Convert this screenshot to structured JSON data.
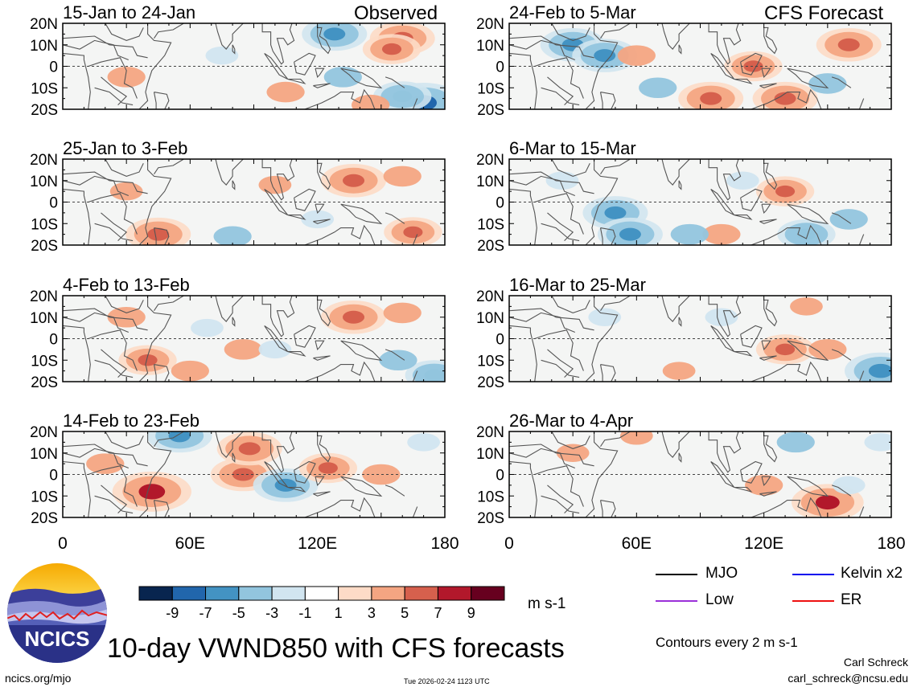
{
  "figure": {
    "title": "10-day VWND850 with CFS forecasts",
    "units": "m s-1",
    "contour_note": "Contours every 2 m s-1",
    "author": "Carl Schreck",
    "email": "carl_schreck@ncsu.edu",
    "website": "ncics.org/mjo",
    "timestamp": "Tue 2026-02-24 1123 UTC",
    "logo_text": "NCICS"
  },
  "columns": {
    "left_label": "Observed",
    "right_label": "CFS Forecast"
  },
  "legend": {
    "items": [
      {
        "label": "MJO",
        "color": "#000000"
      },
      {
        "label": "Kelvin x2",
        "color": "#0000ee"
      },
      {
        "label": "Low",
        "color": "#9b30d9"
      },
      {
        "label": "ER",
        "color": "#ee1111"
      }
    ]
  },
  "colorbar": {
    "colors": [
      "#08254f",
      "#2166ac",
      "#4393c3",
      "#92c5de",
      "#d1e5f0",
      "#ffffff",
      "#fddbc7",
      "#f4a582",
      "#d6604d",
      "#b2182b",
      "#67001f"
    ],
    "ticks": [
      "-9",
      "-7",
      "-5",
      "-3",
      "-1",
      "1",
      "3",
      "5",
      "7",
      "9"
    ]
  },
  "chart_data": {
    "type": "heatmap",
    "variable": "VWND850 (10-day mean meridional wind at 850 hPa)",
    "x_range": [
      0,
      180
    ],
    "y_range": [
      -20,
      20
    ],
    "x_ticks": [
      "0",
      "60E",
      "120E",
      "180"
    ],
    "y_ticks": [
      "20N",
      "10N",
      "0",
      "10S",
      "20S"
    ],
    "panels": [
      {
        "label": "15-Jan to 24-Jan",
        "column": "left",
        "blobs": [
          {
            "lon": 160,
            "lat": 13,
            "value": 5
          },
          {
            "lon": 155,
            "lat": 8,
            "value": 4
          },
          {
            "lon": 170,
            "lat": -17,
            "value": -7
          },
          {
            "lon": 160,
            "lat": -14,
            "value": -4
          },
          {
            "lon": 128,
            "lat": 15,
            "value": -5
          },
          {
            "lon": 132,
            "lat": -5,
            "value": -3
          },
          {
            "lon": 30,
            "lat": -5,
            "value": 3
          },
          {
            "lon": 75,
            "lat": 5,
            "value": -2
          },
          {
            "lon": 105,
            "lat": -12,
            "value": 3
          },
          {
            "lon": 145,
            "lat": -18,
            "value": 3
          }
        ]
      },
      {
        "label": "25-Jan to 3-Feb",
        "column": "left",
        "blobs": [
          {
            "lon": 137,
            "lat": 10,
            "value": 5
          },
          {
            "lon": 160,
            "lat": 12,
            "value": 3
          },
          {
            "lon": 45,
            "lat": -15,
            "value": 5
          },
          {
            "lon": 165,
            "lat": -14,
            "value": 4
          },
          {
            "lon": 80,
            "lat": -16,
            "value": -3
          },
          {
            "lon": 120,
            "lat": -8,
            "value": -2
          },
          {
            "lon": 100,
            "lat": 8,
            "value": 2
          },
          {
            "lon": 30,
            "lat": 5,
            "value": 2
          }
        ]
      },
      {
        "label": "4-Feb to 13-Feb",
        "column": "left",
        "blobs": [
          {
            "lon": 137,
            "lat": 10,
            "value": 5
          },
          {
            "lon": 160,
            "lat": 12,
            "value": 3
          },
          {
            "lon": 40,
            "lat": -10,
            "value": 4
          },
          {
            "lon": 85,
            "lat": -5,
            "value": 3
          },
          {
            "lon": 100,
            "lat": -5,
            "value": -2
          },
          {
            "lon": 60,
            "lat": -15,
            "value": 3
          },
          {
            "lon": 30,
            "lat": 10,
            "value": 3
          },
          {
            "lon": 175,
            "lat": -17,
            "value": -4
          },
          {
            "lon": 68,
            "lat": 5,
            "value": -2
          },
          {
            "lon": 158,
            "lat": -10,
            "value": -3
          }
        ]
      },
      {
        "label": "14-Feb to 23-Feb",
        "column": "left",
        "blobs": [
          {
            "lon": 42,
            "lat": -8,
            "value": 7
          },
          {
            "lon": 85,
            "lat": 0,
            "value": 5
          },
          {
            "lon": 88,
            "lat": 12,
            "value": 5
          },
          {
            "lon": 105,
            "lat": -5,
            "value": -5
          },
          {
            "lon": 55,
            "lat": 18,
            "value": -5
          },
          {
            "lon": 125,
            "lat": 3,
            "value": 4
          },
          {
            "lon": 150,
            "lat": 0,
            "value": 3
          },
          {
            "lon": 20,
            "lat": 5,
            "value": 3
          },
          {
            "lon": 170,
            "lat": 15,
            "value": -2
          }
        ]
      },
      {
        "label": "24-Feb to 5-Mar",
        "column": "right",
        "blobs": [
          {
            "lon": 30,
            "lat": 10,
            "value": -5
          },
          {
            "lon": 160,
            "lat": 10,
            "value": 5
          },
          {
            "lon": 45,
            "lat": 5,
            "value": -5
          },
          {
            "lon": 95,
            "lat": -15,
            "value": 5
          },
          {
            "lon": 130,
            "lat": -15,
            "value": 5
          },
          {
            "lon": 115,
            "lat": 0,
            "value": 4
          },
          {
            "lon": 60,
            "lat": 5,
            "value": 3
          },
          {
            "lon": 70,
            "lat": -10,
            "value": -3
          },
          {
            "lon": 150,
            "lat": -8,
            "value": -3
          }
        ]
      },
      {
        "label": "6-Mar to 15-Mar",
        "column": "right",
        "blobs": [
          {
            "lon": 50,
            "lat": -5,
            "value": -5
          },
          {
            "lon": 57,
            "lat": -15,
            "value": -5
          },
          {
            "lon": 130,
            "lat": 5,
            "value": 4
          },
          {
            "lon": 100,
            "lat": -15,
            "value": 3
          },
          {
            "lon": 140,
            "lat": -15,
            "value": -4
          },
          {
            "lon": 160,
            "lat": -8,
            "value": -3
          },
          {
            "lon": 85,
            "lat": -15,
            "value": -3
          },
          {
            "lon": 110,
            "lat": 10,
            "value": -2
          },
          {
            "lon": 25,
            "lat": 10,
            "value": -2
          }
        ]
      },
      {
        "label": "16-Mar to 25-Mar",
        "column": "right",
        "blobs": [
          {
            "lon": 175,
            "lat": -15,
            "value": -6
          },
          {
            "lon": 130,
            "lat": -5,
            "value": 4
          },
          {
            "lon": 150,
            "lat": -5,
            "value": 3
          },
          {
            "lon": 45,
            "lat": 10,
            "value": -2
          },
          {
            "lon": 100,
            "lat": 10,
            "value": -2
          },
          {
            "lon": 80,
            "lat": -15,
            "value": 2
          },
          {
            "lon": 140,
            "lat": 15,
            "value": 2
          }
        ]
      },
      {
        "label": "26-Mar to 4-Apr",
        "column": "right",
        "blobs": [
          {
            "lon": 150,
            "lat": -13,
            "value": 6
          },
          {
            "lon": 120,
            "lat": -5,
            "value": 3
          },
          {
            "lon": 135,
            "lat": 15,
            "value": -3
          },
          {
            "lon": 175,
            "lat": 15,
            "value": -2
          },
          {
            "lon": 30,
            "lat": 10,
            "value": 2
          },
          {
            "lon": 60,
            "lat": 18,
            "value": 2
          },
          {
            "lon": 160,
            "lat": -5,
            "value": -2
          }
        ]
      }
    ]
  }
}
